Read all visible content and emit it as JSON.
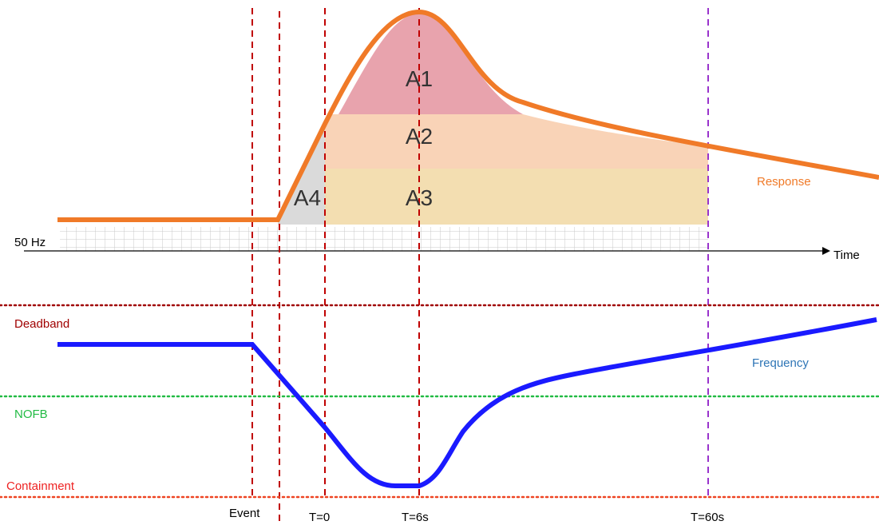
{
  "areas": [
    "A1",
    "A2",
    "A3",
    "A4"
  ],
  "curves": {
    "response": "Response",
    "frequency": "Frequency"
  },
  "axis": {
    "baseline": "50 Hz",
    "time": "Time"
  },
  "levels": {
    "deadband": "Deadband",
    "nofb": "NOFB",
    "containment": "Containment"
  },
  "markers": {
    "event": "Event",
    "t0": "T=0",
    "t6": "T=6s",
    "t60": "T=60s"
  }
}
